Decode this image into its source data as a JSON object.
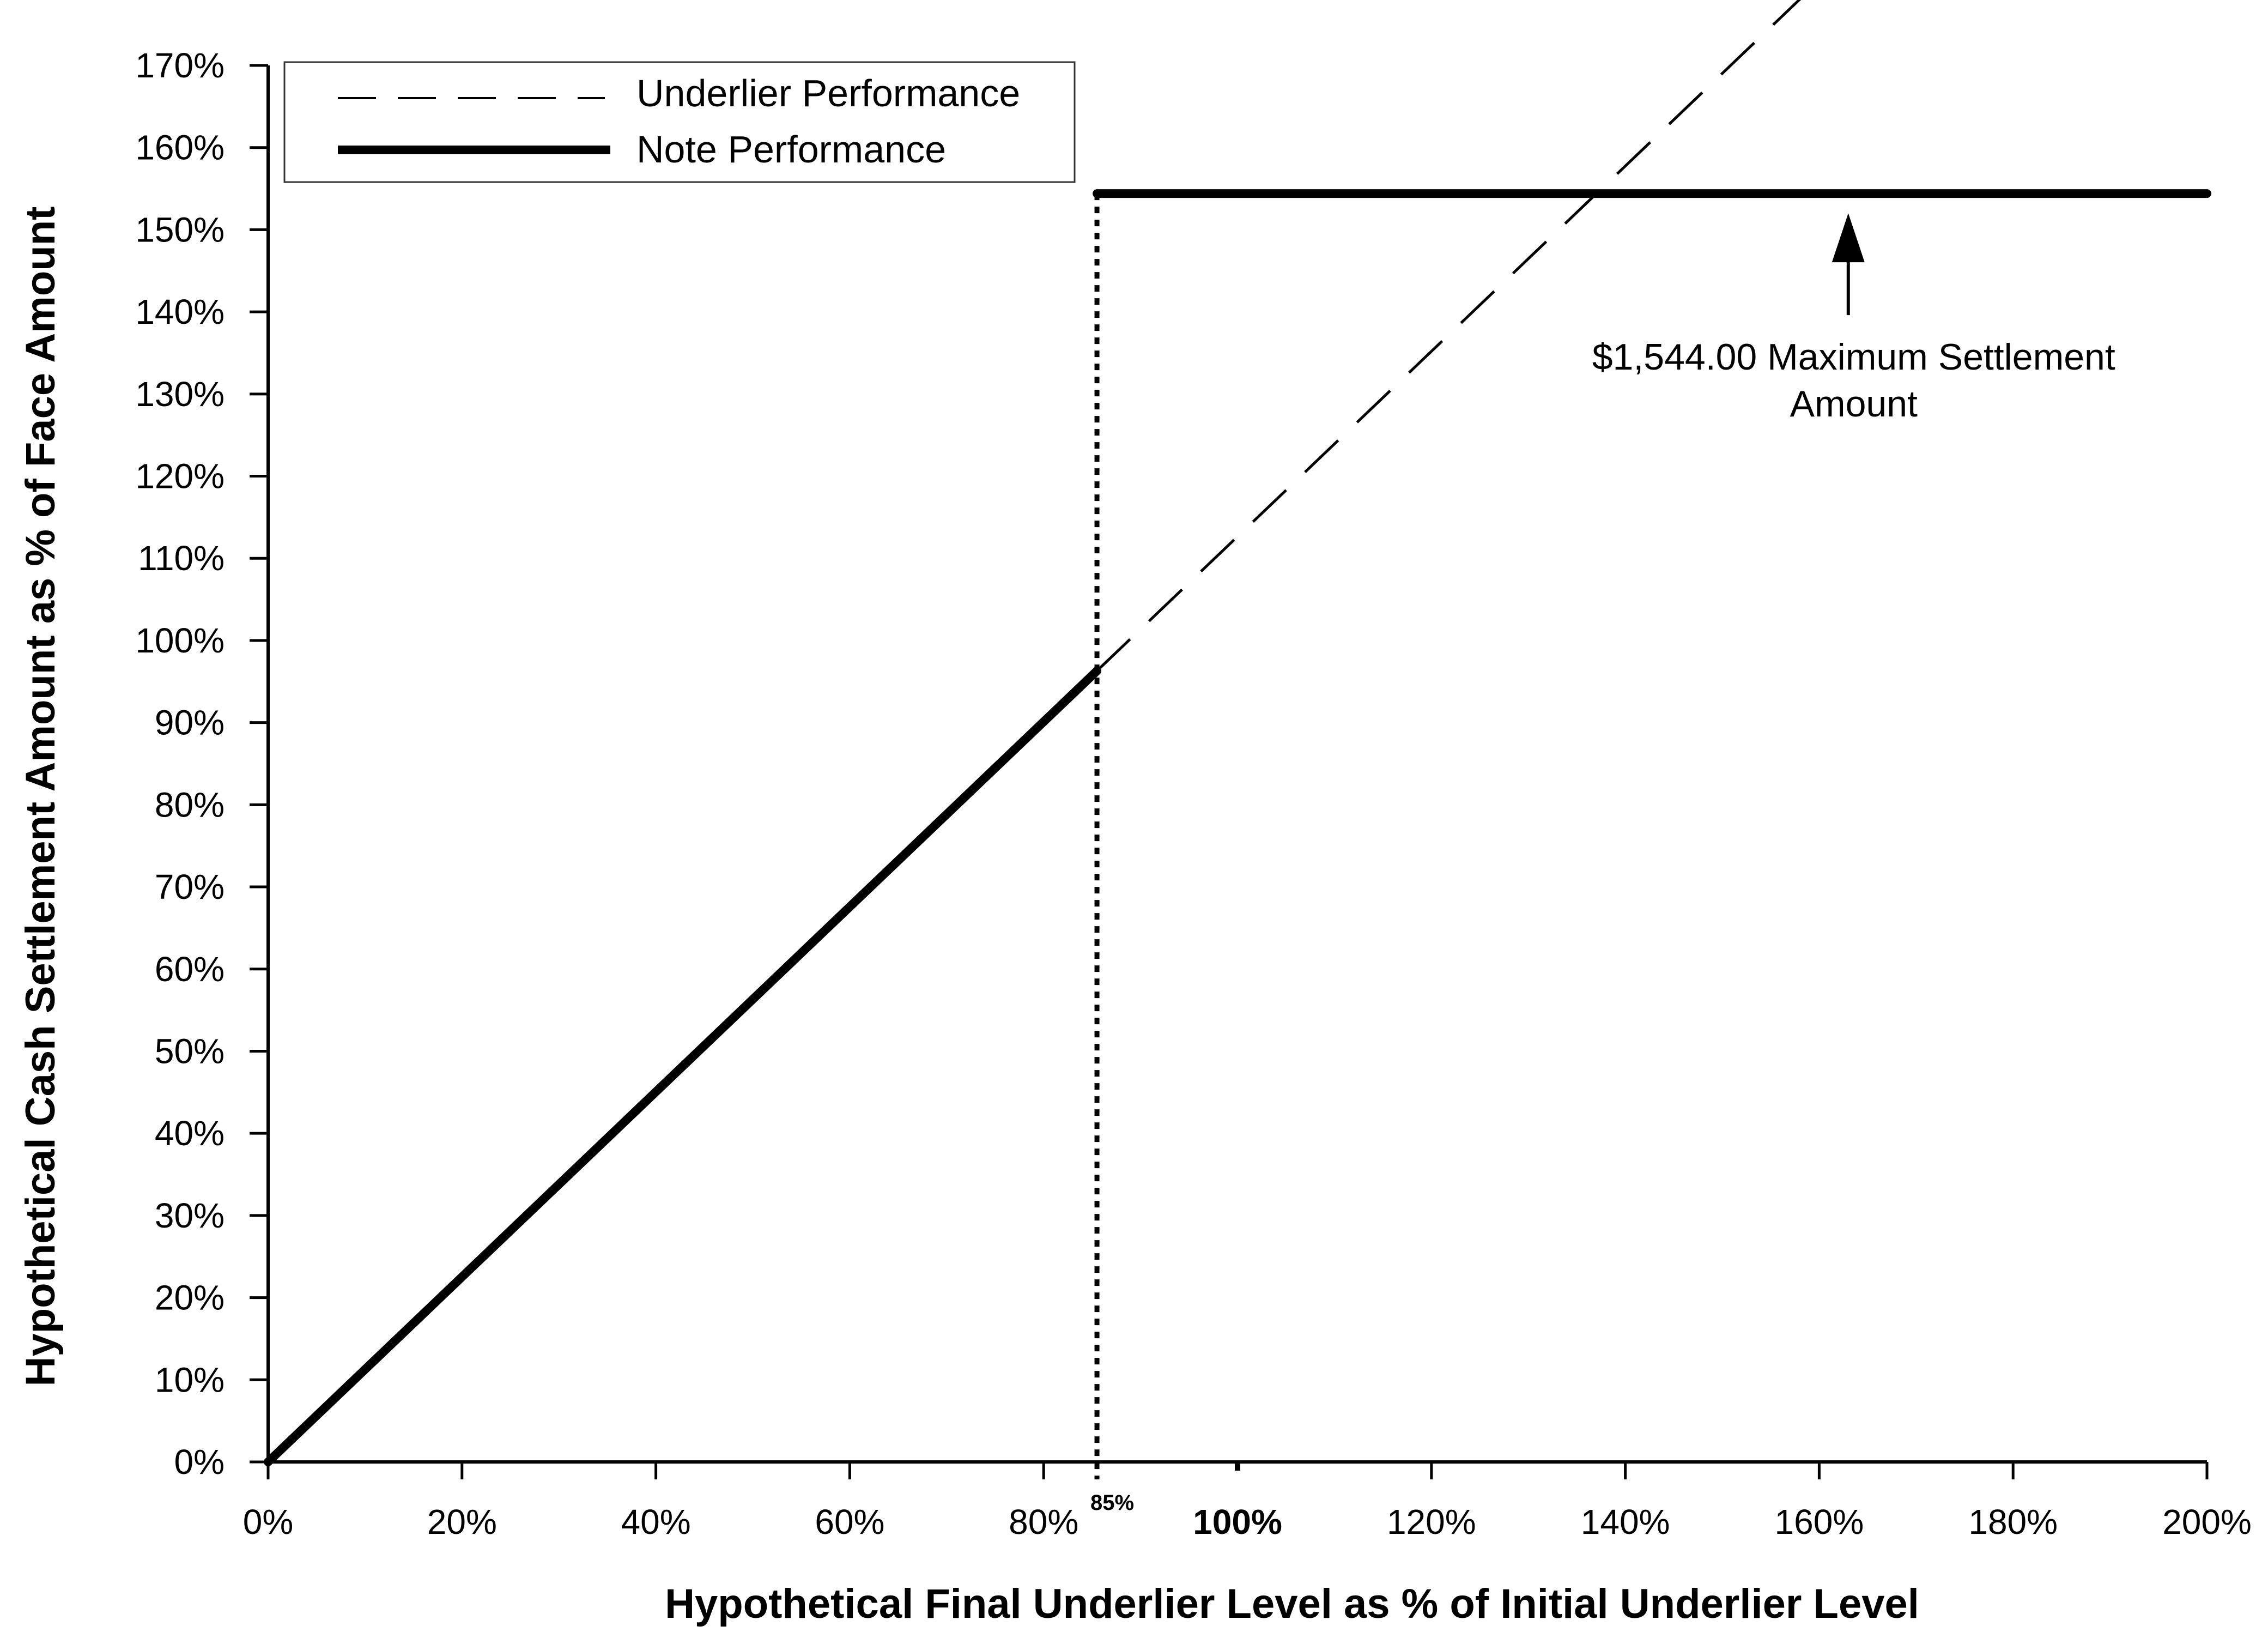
{
  "chart_data": {
    "type": "line",
    "xlabel": "Hypothetical Final Underlier Level as % of Initial Underlier Level",
    "ylabel": "Hypothetical Cash Settlement Amount as % of Face Amount",
    "xlim": [
      0,
      200
    ],
    "ylim": [
      0,
      170
    ],
    "x_ticks": [
      {
        "value": 0,
        "label": "0%"
      },
      {
        "value": 20,
        "label": "20%"
      },
      {
        "value": 40,
        "label": "40%"
      },
      {
        "value": 60,
        "label": "60%"
      },
      {
        "value": 80,
        "label": "80%"
      },
      {
        "value": 100,
        "label": "100%",
        "bold": true
      },
      {
        "value": 120,
        "label": "120%"
      },
      {
        "value": 140,
        "label": "140%"
      },
      {
        "value": 160,
        "label": "160%"
      },
      {
        "value": 180,
        "label": "180%"
      },
      {
        "value": 200,
        "label": "200%"
      }
    ],
    "y_ticks": [
      {
        "value": 0,
        "label": "0%"
      },
      {
        "value": 10,
        "label": "10%"
      },
      {
        "value": 20,
        "label": "20%"
      },
      {
        "value": 30,
        "label": "30%"
      },
      {
        "value": 40,
        "label": "40%"
      },
      {
        "value": 50,
        "label": "50%"
      },
      {
        "value": 60,
        "label": "60%"
      },
      {
        "value": 70,
        "label": "70%"
      },
      {
        "value": 80,
        "label": "80%"
      },
      {
        "value": 90,
        "label": "90%"
      },
      {
        "value": 100,
        "label": "100%"
      },
      {
        "value": 110,
        "label": "110%"
      },
      {
        "value": 120,
        "label": "120%"
      },
      {
        "value": 130,
        "label": "130%"
      },
      {
        "value": 140,
        "label": "140%"
      },
      {
        "value": 150,
        "label": "150%"
      },
      {
        "value": 160,
        "label": "160%"
      },
      {
        "value": 170,
        "label": "170%"
      }
    ],
    "series": [
      {
        "name": "Underlier Performance",
        "style": "dashed",
        "color": "#000000",
        "x": [
          85.5,
          160
        ],
        "y": [
          96.3,
          180.3
        ]
      },
      {
        "name": "Note Performance",
        "style": "solid-thick",
        "color": "#000000",
        "x": [
          0,
          85.5
        ],
        "y": [
          0,
          96.3
        ]
      },
      {
        "name": "Note Performance",
        "style": "solid-thick",
        "color": "#000000",
        "x": [
          85.5,
          200
        ],
        "y": [
          154.4,
          154.4
        ]
      }
    ],
    "reference_line": {
      "x": 85.5,
      "y_range": [
        0,
        154.4
      ],
      "style": "dotted",
      "label": "85%"
    },
    "annotation": {
      "lines": [
        "$1,544.00 Maximum Settlement",
        "Amount"
      ],
      "arrow_x": 163,
      "arrow_tip_y": 154.4,
      "arrow_tail_y": 139.6
    },
    "legend_position": "top-left",
    "grid": false
  }
}
